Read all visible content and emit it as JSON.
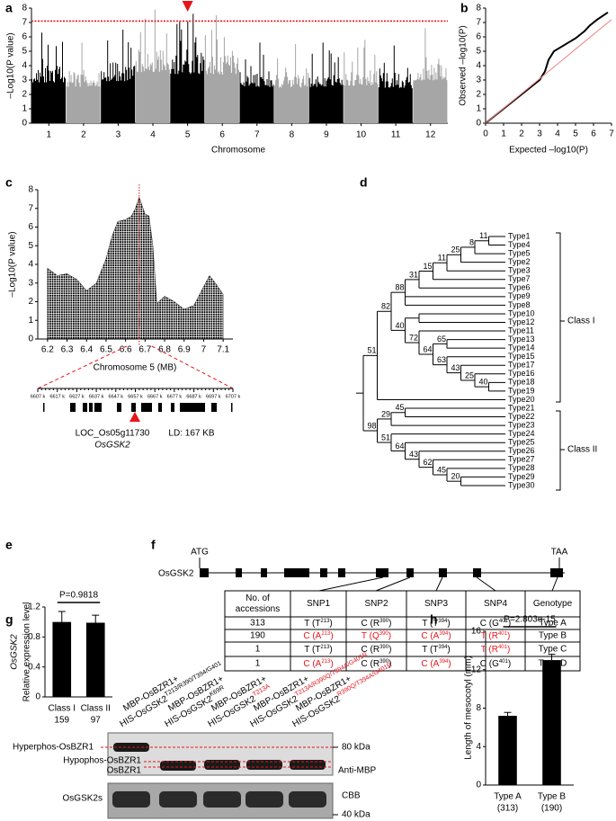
{
  "panel_labels": [
    "a",
    "b",
    "c",
    "d",
    "e",
    "f",
    "g",
    "h"
  ],
  "chart_data": [
    {
      "type": "manhattan",
      "y_label": "–Log10(P value)",
      "x_label": "Chromosome",
      "categories": [
        "1",
        "2",
        "3",
        "4",
        "5",
        "6",
        "7",
        "8",
        "9",
        "10",
        "11",
        "12"
      ],
      "values": [
        6.3,
        5.6,
        6.5,
        7.9,
        7.6,
        7.5,
        5.6,
        5.5,
        5.6,
        5.8,
        5.4,
        6.6
      ],
      "colors": [
        "#000000",
        "#a6a6a6"
      ],
      "threshold": 7.1,
      "threshold_color": "#e8141b",
      "ylim": [
        0,
        8
      ],
      "yticks": [
        0,
        1,
        2,
        3,
        4,
        5,
        6,
        7,
        8
      ]
    },
    {
      "type": "qq",
      "x_label": "Expected –log10(P)",
      "y_label": "Observed –log10(P)",
      "xlim": [
        0,
        7
      ],
      "ylim": [
        0,
        8
      ],
      "xticks": [
        0,
        1,
        2,
        3,
        4,
        5,
        6,
        7
      ],
      "yticks": [
        0,
        1,
        2,
        3,
        4,
        5,
        6,
        7,
        8
      ],
      "series": [
        {
          "color": "#000000",
          "x": [
            0,
            1,
            2,
            3,
            3.3,
            3.5,
            3.8,
            4.2,
            5,
            5.5,
            5.8,
            6.2,
            6.8
          ],
          "values": [
            0,
            1,
            2,
            3,
            3.6,
            4.4,
            5,
            5.3,
            5.9,
            6.4,
            6.8,
            7.2,
            7.7
          ]
        },
        {
          "color": "#f08080",
          "x": [
            0,
            7
          ],
          "values": [
            0,
            7.2
          ]
        }
      ]
    },
    {
      "type": "regional",
      "x_label": "Chromosome 5 (MB)",
      "y_label": "–Log10(P value)",
      "xlim": [
        6.15,
        7.15
      ],
      "xticks": [
        6.2,
        6.3,
        6.4,
        6.5,
        6.6,
        6.7,
        6.8,
        6.9,
        7,
        7.1
      ],
      "ylim": [
        0,
        8
      ],
      "yticks": [
        0,
        1,
        2,
        3,
        4,
        5,
        6,
        7,
        8
      ],
      "x": [
        6.2,
        6.25,
        6.3,
        6.35,
        6.4,
        6.45,
        6.5,
        6.53,
        6.56,
        6.6,
        6.63,
        6.65,
        6.67,
        6.7,
        6.72,
        6.74,
        6.76,
        6.8,
        6.85,
        6.9,
        6.95,
        7.0,
        7.03,
        7.06,
        7.1
      ],
      "values": [
        3.8,
        3.4,
        3.5,
        3.2,
        2.6,
        3.0,
        4.3,
        5.5,
        6.3,
        6.4,
        6.6,
        7.0,
        7.6,
        6.7,
        6.6,
        5.0,
        1.9,
        2.3,
        2.0,
        1.6,
        1.8,
        2.8,
        3.4,
        3.0,
        2.4
      ],
      "color": "#000000",
      "marker_x": 6.67,
      "marker_color": "#e8141b"
    },
    {
      "type": "bar",
      "y_label_gene": "OsGSK2",
      "y_label": "Relative expression level",
      "categories": [
        "Class I",
        "Class II"
      ],
      "sample_sizes": [
        "159",
        "97"
      ],
      "values": [
        1.0,
        0.99
      ],
      "errors": [
        0.14,
        0.1
      ],
      "ylim": [
        0,
        1.2
      ],
      "yticks": [
        0,
        0.4,
        0.8,
        1.2
      ],
      "annotation": "P=0.9818",
      "color": "#000000"
    },
    {
      "type": "bar",
      "y_label": "Length of mesocotyl (mm)",
      "categories": [
        "Type A",
        "Type B"
      ],
      "sample_sizes": [
        "(313)",
        "(190)"
      ],
      "values": [
        7.2,
        13.0
      ],
      "errors": [
        0.35,
        0.6
      ],
      "ylim": [
        0,
        16
      ],
      "yticks": [
        0,
        4,
        8,
        12,
        16
      ],
      "annotation": "P=2.803e-15",
      "color": "#000000"
    }
  ],
  "gene_track": {
    "scale": [
      "6607 k",
      "6617 k",
      "6627 k",
      "6637 k",
      "6647 k",
      "6657 k",
      "6667 k",
      "6677 k",
      "6687 k",
      "6697 k",
      "6707 k"
    ],
    "gene": "LOC_Os05g11730",
    "gene_symbol": "OsGSK2",
    "ld": "LD: 167 KB"
  },
  "tree": {
    "children": [
      {
        "label": "51",
        "children": [
          {
            "label": "82",
            "children": [
              {
                "label": "88",
                "children": [
                  {
                    "label": "31",
                    "children": [
                      {
                        "label": "15",
                        "children": [
                          {
                            "label": "11",
                            "children": [
                              {
                                "label": "25",
                                "children": [
                                  {
                                    "label": "8",
                                    "children": [
                                      {
                                        "label": "11",
                                        "children": [
                                          {
                                            "label": "Type1"
                                          },
                                          {
                                            "label": "Type4"
                                          }
                                        ]
                                      },
                                      {
                                        "label": "Type5"
                                      }
                                    ]
                                  },
                                  {
                                    "label": "Type2"
                                  }
                                ]
                              },
                              {
                                "label": "Type3"
                              }
                            ]
                          },
                          {
                            "label": "Type7"
                          }
                        ]
                      },
                      {
                        "label": "Type6"
                      }
                    ]
                  },
                  {
                    "label": "Type9"
                  },
                  {
                    "label": "Type8"
                  }
                ]
              },
              {
                "label": "40",
                "children": [
                  {
                    "children": [
                      {
                        "label": "Type10"
                      },
                      {
                        "label": "Type12"
                      }
                    ]
                  },
                  {
                    "label": "72",
                    "children": [
                      {
                        "label": "Type11"
                      },
                      {
                        "label": "64",
                        "children": [
                          {
                            "label": "65",
                            "children": [
                              {
                                "label": "Type13"
                              },
                              {
                                "label": "Type14"
                              }
                            ]
                          },
                          {
                            "label": "63",
                            "children": [
                              {
                                "label": "Type15"
                              },
                              {
                                "label": "43",
                                "children": [
                                  {
                                    "label": "Type17"
                                  },
                                  {
                                    "label": "25",
                                    "children": [
                                      {
                                        "label": "Type16"
                                      },
                                      {
                                        "label": "40",
                                        "children": [
                                          {
                                            "label": "Type18"
                                          },
                                          {
                                            "label": "Type19"
                                          }
                                        ]
                                      }
                                    ]
                                  }
                                ]
                              }
                            ]
                          }
                        ]
                      }
                    ]
                  }
                ]
              }
            ]
          },
          {
            "label": "Type20"
          }
        ]
      },
      {
        "label": "98",
        "children": [
          {
            "label": "29",
            "children": [
              {
                "label": "45",
                "children": [
                  {
                    "label": "Type21"
                  },
                  {
                    "label": "Type22"
                  }
                ]
              },
              {
                "label": "Type23"
              }
            ]
          },
          {
            "label": "51",
            "children": [
              {
                "label": "Type24"
              },
              {
                "label": "64",
                "children": [
                  {
                    "label": "Type25"
                  },
                  {
                    "label": "43",
                    "children": [
                      {
                        "label": "Type26"
                      },
                      {
                        "label": "62",
                        "children": [
                          {
                            "label": "Type27"
                          },
                          {
                            "label": "45",
                            "children": [
                              {
                                "label": "Type28"
                              },
                              {
                                "label": "20",
                                "children": [
                                  {
                                    "label": "Type29"
                                  },
                                  {
                                    "label": "Type30"
                                  }
                                ]
                              }
                            ]
                          }
                        ]
                      }
                    ]
                  }
                ]
              }
            ]
          }
        ]
      }
    ]
  },
  "classes": [
    "Class I",
    "Class II"
  ],
  "gene_structure": {
    "start": "ATG",
    "stop": "TAA",
    "name": "OsGSK2"
  },
  "table": {
    "header": [
      [
        "No. of",
        "accessions"
      ],
      "SNP1",
      "SNP2",
      "SNP3",
      "SNP4",
      "Genotype"
    ],
    "highlight_color": "#e8141b",
    "rows": [
      {
        "accessions": 313,
        "snps": [
          {
            "text": [
              "T (T",
              "213",
              ")"
            ],
            "red": false
          },
          {
            "text": [
              "C (R",
              "390",
              ")"
            ],
            "red": false
          },
          {
            "text": [
              "T (T",
              "394",
              ")"
            ],
            "red": false
          },
          {
            "text": [
              "C (G",
              "401",
              ")"
            ],
            "red": false
          }
        ],
        "genotype": "Type A"
      },
      {
        "accessions": 190,
        "snps": [
          {
            "text": [
              "C (A",
              "213",
              ")"
            ],
            "red": true
          },
          {
            "text": [
              "T (Q",
              "390",
              ")"
            ],
            "red": true
          },
          {
            "text": [
              "C (A",
              "394",
              ")"
            ],
            "red": true
          },
          {
            "text": [
              "T (R",
              "401",
              ")"
            ],
            "red": true
          }
        ],
        "genotype": "Type B"
      },
      {
        "accessions": 1,
        "snps": [
          {
            "text": [
              "T (T",
              "213",
              ")"
            ],
            "red": false
          },
          {
            "text": [
              "C (R",
              "390",
              ")"
            ],
            "red": false
          },
          {
            "text": [
              "T (T",
              "394",
              ")"
            ],
            "red": false
          },
          {
            "text": [
              "T (R",
              "401",
              ")"
            ],
            "red": true
          }
        ],
        "genotype": "Type C"
      },
      {
        "accessions": 1,
        "snps": [
          {
            "text": [
              "C (A",
              "213",
              ")"
            ],
            "red": true
          },
          {
            "text": [
              "C (R",
              "390",
              ")"
            ],
            "red": false
          },
          {
            "text": [
              "C (A",
              "394",
              ")"
            ],
            "red": true
          },
          {
            "text": [
              "C (G",
              "401",
              ")"
            ],
            "red": false
          }
        ],
        "genotype": "Type D"
      }
    ]
  },
  "blot": {
    "highlight_color": "#e8141b",
    "lanes": [
      {
        "line1": "MBP-OsBZR1+",
        "line2": "HIS-OsGSK2",
        "sup": "T213/R390/T394/G401",
        "red": false
      },
      {
        "line1": "MBP-OsBZR1+",
        "line2": "HIS-OsGSK2",
        "sup": "K69R",
        "red": false
      },
      {
        "line1": "MBP-OsBZR1+",
        "line2": "HIS-OsGSK2",
        "sup": "T213A",
        "red": true
      },
      {
        "line1": "MBP-OsBZR1+",
        "line2": "HIS-OsGSK2",
        "sup": "T213A/R390Q/T394A/G401R",
        "red": true
      },
      {
        "line1": "MBP-OsBZR1+",
        "line2": "HIS-OsGSK2",
        "sup": "R390Q/T394A/G401R",
        "red": true
      }
    ],
    "left_labels": [
      "Hyperphos-OsBZR1",
      "Hypophos-OsBZR1",
      "OsBZR1",
      "OsGSK2s"
    ],
    "right_labels": [
      "80 kDa",
      "Anti-MBP",
      "CBB",
      "40 kDa"
    ]
  }
}
